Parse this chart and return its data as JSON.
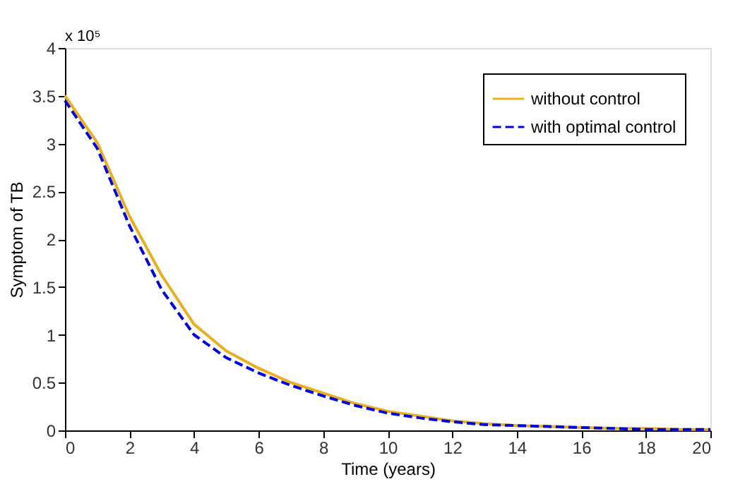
{
  "chart_data": {
    "type": "line",
    "xlabel": "Time (years)",
    "ylabel": "Symptom of TB",
    "annotations": [
      "x 10⁵"
    ],
    "x": [
      0,
      1,
      2,
      3,
      4,
      5,
      6,
      7,
      8,
      9,
      10,
      11,
      12,
      13,
      14,
      15,
      16,
      17,
      18,
      19,
      20
    ],
    "series": [
      {
        "name": "without control",
        "color": "#e8b020",
        "line_style": "solid",
        "values": [
          3.5,
          3.01,
          2.24,
          1.62,
          1.11,
          0.83,
          0.65,
          0.5,
          0.39,
          0.28,
          0.2,
          0.15,
          0.1,
          0.07,
          0.05,
          0.04,
          0.03,
          0.02,
          0.02,
          0.01,
          0.01
        ]
      },
      {
        "name": "with optimal control",
        "color": "#0000e0",
        "line_style": "dashed",
        "values": [
          3.45,
          2.95,
          2.14,
          1.47,
          1.0,
          0.76,
          0.6,
          0.47,
          0.36,
          0.26,
          0.18,
          0.13,
          0.09,
          0.06,
          0.05,
          0.04,
          0.03,
          0.02,
          0.01,
          0.01,
          0.01
        ]
      }
    ],
    "xlim": [
      0,
      20
    ],
    "xticks": [
      0,
      2,
      4,
      6,
      8,
      10,
      12,
      14,
      16,
      18,
      20
    ],
    "ylim": [
      0,
      4
    ],
    "yticks": [
      0,
      0.5,
      1,
      1.5,
      2,
      2.5,
      3,
      3.5,
      4
    ],
    "grid": false,
    "legend": "top right",
    "marker": "none"
  }
}
